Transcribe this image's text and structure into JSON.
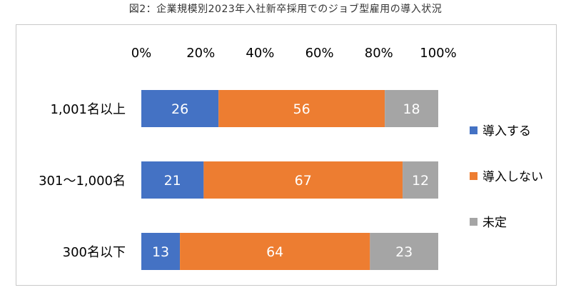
{
  "figure_title": "図2：企業規模別2023年入社新卒採用でのジョブ型雇用の導入状況",
  "chart_data": {
    "type": "bar",
    "orientation": "horizontal",
    "stacked": true,
    "percent_stacked": true,
    "categories": [
      "1,001名以上",
      "301～1,000名",
      "300名以下"
    ],
    "series": [
      {
        "name": "導入する",
        "values": [
          26,
          21,
          13
        ],
        "color": "#4472c4"
      },
      {
        "name": "導入しない",
        "values": [
          56,
          67,
          64
        ],
        "color": "#ed7d31"
      },
      {
        "name": "未定",
        "values": [
          18,
          12,
          23
        ],
        "color": "#a5a5a5"
      }
    ],
    "x_ticks": [
      "0%",
      "20%",
      "40%",
      "60%",
      "80%",
      "100%"
    ],
    "xlim": [
      0,
      100
    ],
    "x_axis_position": "top",
    "grid": false,
    "legend_position": "right",
    "data_labels": true
  }
}
